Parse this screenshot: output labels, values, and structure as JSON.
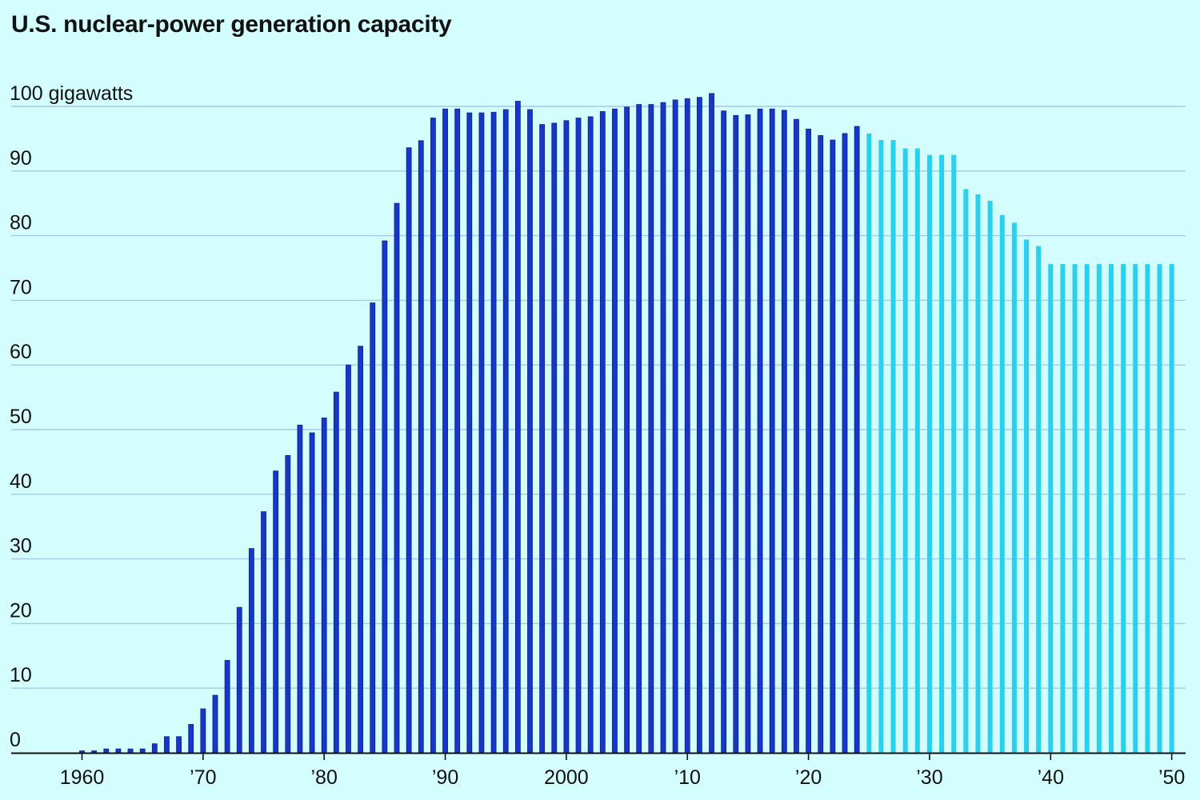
{
  "title": "U.S. nuclear-power generation capacity",
  "colors": {
    "background": "#d4fdfd",
    "actual": "#1737c8",
    "actual_edge": "#0a1f8a",
    "projected": "#2ad1ef",
    "grid": "#a9c7ee",
    "axis": "#111111"
  },
  "chart_data": {
    "type": "bar",
    "title": "U.S. nuclear-power generation capacity",
    "ylabel": "100 gigawatts",
    "ylim": [
      0,
      100
    ],
    "y_ticks": [
      {
        "value": 100,
        "label": "100 gigawatts"
      },
      {
        "value": 90,
        "label": "90"
      },
      {
        "value": 80,
        "label": "80"
      },
      {
        "value": 70,
        "label": "70"
      },
      {
        "value": 60,
        "label": "60"
      },
      {
        "value": 50,
        "label": "50"
      },
      {
        "value": 40,
        "label": "40"
      },
      {
        "value": 30,
        "label": "30"
      },
      {
        "value": 20,
        "label": "20"
      },
      {
        "value": 10,
        "label": "10"
      },
      {
        "value": 0,
        "label": "0"
      }
    ],
    "x_ticks": [
      {
        "year": 1960,
        "label": "1960"
      },
      {
        "year": 1970,
        "label": "’70"
      },
      {
        "year": 1980,
        "label": "’80"
      },
      {
        "year": 1990,
        "label": "’90"
      },
      {
        "year": 2000,
        "label": "2000"
      },
      {
        "year": 2010,
        "label": "’10"
      },
      {
        "year": 2020,
        "label": "’20"
      },
      {
        "year": 2030,
        "label": "’30"
      },
      {
        "year": 2040,
        "label": "’40"
      },
      {
        "year": 2050,
        "label": "’50"
      }
    ],
    "grid": true,
    "series": [
      {
        "style": "actual",
        "x": [
          1960,
          1961,
          1962,
          1963,
          1964,
          1965,
          1966,
          1967,
          1968,
          1969,
          1970,
          1971,
          1972,
          1973,
          1974,
          1975,
          1976,
          1977,
          1978,
          1979,
          1980,
          1981,
          1982,
          1983,
          1984,
          1985,
          1986,
          1987,
          1988,
          1989,
          1990,
          1991,
          1992,
          1993,
          1994,
          1995,
          1996,
          1997,
          1998,
          1999,
          2000,
          2001,
          2002,
          2003,
          2004,
          2005,
          2006,
          2007,
          2008,
          2009,
          2010,
          2011,
          2012,
          2013,
          2014,
          2015,
          2016,
          2017,
          2018,
          2019,
          2020,
          2021,
          2022,
          2023,
          2024
        ],
        "values": [
          0.3,
          0.3,
          0.6,
          0.6,
          0.6,
          0.6,
          1.4,
          2.5,
          2.5,
          4.4,
          6.8,
          8.9,
          14.3,
          22.5,
          31.6,
          37.3,
          43.6,
          46.0,
          50.7,
          49.5,
          51.8,
          55.8,
          60.0,
          62.9,
          69.6,
          79.2,
          85.0,
          93.6,
          94.7,
          98.2,
          99.6,
          99.6,
          99.0,
          99.0,
          99.1,
          99.5,
          100.8,
          99.5,
          97.2,
          97.4,
          97.8,
          98.2,
          98.4,
          99.2,
          99.6,
          99.9,
          100.3,
          100.3,
          100.6,
          101.0,
          101.2,
          101.4,
          102.0,
          99.3,
          98.6,
          98.7,
          99.6,
          99.6,
          99.4,
          98.0,
          96.5,
          95.5,
          94.8,
          95.8,
          96.9
        ]
      },
      {
        "style": "projected",
        "x": [
          2025,
          2026,
          2027,
          2028,
          2029,
          2030,
          2031,
          2032,
          2033,
          2034,
          2035,
          2036,
          2037,
          2038,
          2039,
          2040,
          2041,
          2042,
          2043,
          2044,
          2045,
          2046,
          2047,
          2048,
          2049,
          2050
        ],
        "values": [
          95.8,
          94.8,
          94.8,
          93.5,
          93.5,
          92.5,
          92.5,
          92.5,
          87.2,
          86.4,
          85.4,
          83.2,
          82.0,
          79.4,
          78.4,
          75.6,
          75.6,
          75.6,
          75.6,
          75.6,
          75.6,
          75.6,
          75.6,
          75.6,
          75.6,
          75.6
        ]
      }
    ]
  }
}
